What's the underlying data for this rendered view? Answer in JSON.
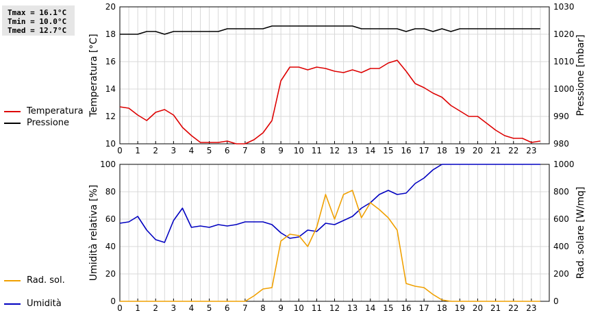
{
  "stats": {
    "tmax": "Tmax = 16.1°C",
    "tmin": "Tmin = 10.0°C",
    "tmed": "Tmed = 12.7°C"
  },
  "legend": {
    "top": [
      {
        "label": "Temperatura",
        "color": "#dd0000"
      },
      {
        "label": "Pressione",
        "color": "#000000"
      }
    ],
    "bottom": [
      {
        "label": "Umidità",
        "color": "#0000c0"
      },
      {
        "label": "Rad. sol.",
        "color": "#f0a000"
      }
    ]
  },
  "chart_data": [
    {
      "type": "line",
      "x_ticks": [
        "0",
        "1",
        "2",
        "3",
        "4",
        "5",
        "6",
        "7",
        "8",
        "9",
        "10",
        "11",
        "12",
        "13",
        "14",
        "15",
        "16",
        "17",
        "18",
        "19",
        "20",
        "21",
        "22",
        "23"
      ],
      "left_axis": {
        "label": "Temperatura [°C]",
        "range": [
          10,
          20
        ],
        "ticks": [
          "10",
          "12",
          "14",
          "16",
          "18",
          "20"
        ]
      },
      "right_axis": {
        "label": "Pressione [mbar]",
        "range": [
          980,
          1030
        ],
        "ticks": [
          "980",
          "990",
          "1000",
          "1010",
          "1020",
          "1030"
        ]
      },
      "grid": true,
      "series": [
        {
          "name": "Temperatura",
          "axis": "left",
          "color": "#dd0000",
          "x": [
            0,
            0.5,
            1,
            1.5,
            2,
            2.5,
            3,
            3.5,
            4,
            4.5,
            5,
            5.5,
            6,
            6.5,
            7,
            7.5,
            8,
            8.5,
            9,
            9.5,
            10,
            10.5,
            11,
            11.5,
            12,
            12.5,
            13,
            13.5,
            14,
            14.5,
            15,
            15.5,
            16,
            16.5,
            17,
            17.5,
            18,
            18.5,
            19,
            19.5,
            20,
            20.5,
            21,
            21.5,
            22,
            22.5,
            23,
            23.5
          ],
          "values": [
            12.7,
            12.6,
            12.1,
            11.7,
            12.3,
            12.5,
            12.1,
            11.2,
            10.6,
            10.1,
            10.1,
            10.1,
            10.2,
            10.0,
            10.0,
            10.3,
            10.8,
            11.7,
            14.6,
            15.6,
            15.6,
            15.4,
            15.6,
            15.5,
            15.3,
            15.2,
            15.4,
            15.2,
            15.5,
            15.5,
            15.9,
            16.1,
            15.3,
            14.4,
            14.1,
            13.7,
            13.4,
            12.8,
            12.4,
            12.0,
            12.0,
            11.5,
            11.0,
            10.6,
            10.4,
            10.4,
            10.1,
            10.2
          ]
        },
        {
          "name": "Pressione",
          "axis": "right",
          "color": "#000000",
          "x": [
            0,
            0.5,
            1,
            1.5,
            2,
            2.5,
            3,
            3.5,
            4,
            4.5,
            5,
            5.5,
            6,
            6.5,
            7,
            7.5,
            8,
            8.5,
            9,
            9.5,
            10,
            10.5,
            11,
            11.5,
            12,
            12.5,
            13,
            13.5,
            14,
            14.5,
            15,
            15.5,
            16,
            16.5,
            17,
            17.5,
            18,
            18.5,
            19,
            19.5,
            20,
            20.5,
            21,
            21.5,
            22,
            22.5,
            23,
            23.5
          ],
          "values": [
            1020,
            1020,
            1020,
            1021,
            1021,
            1020,
            1021,
            1021,
            1021,
            1021,
            1021,
            1021,
            1022,
            1022,
            1022,
            1022,
            1022,
            1023,
            1023,
            1023,
            1023,
            1023,
            1023,
            1023,
            1023,
            1023,
            1023,
            1022,
            1022,
            1022,
            1022,
            1022,
            1021,
            1022,
            1022,
            1021,
            1022,
            1021,
            1022,
            1022,
            1022,
            1022,
            1022,
            1022,
            1022,
            1022,
            1022,
            1022
          ]
        }
      ]
    },
    {
      "type": "line",
      "x_ticks": [
        "0",
        "1",
        "2",
        "3",
        "4",
        "5",
        "6",
        "7",
        "8",
        "9",
        "10",
        "11",
        "12",
        "13",
        "14",
        "15",
        "16",
        "17",
        "18",
        "19",
        "20",
        "21",
        "22",
        "23"
      ],
      "left_axis": {
        "label": "Umidità relativa [%]",
        "range": [
          0,
          100
        ],
        "ticks": [
          "0",
          "20",
          "40",
          "60",
          "80",
          "100"
        ]
      },
      "right_axis": {
        "label": "Rad. solare [W/mq]",
        "range": [
          0,
          1000
        ],
        "ticks": [
          "0",
          "200",
          "400",
          "600",
          "800",
          "1000"
        ]
      },
      "grid": true,
      "series": [
        {
          "name": "Umidità",
          "axis": "left",
          "color": "#0000c0",
          "x": [
            0,
            0.5,
            1,
            1.5,
            2,
            2.5,
            3,
            3.5,
            4,
            4.5,
            5,
            5.5,
            6,
            6.5,
            7,
            7.5,
            8,
            8.5,
            9,
            9.5,
            10,
            10.5,
            11,
            11.5,
            12,
            12.5,
            13,
            13.5,
            14,
            14.5,
            15,
            15.5,
            16,
            16.5,
            17,
            17.5,
            18,
            18.5,
            19,
            19.5,
            20,
            20.5,
            21,
            21.5,
            22,
            22.5,
            23,
            23.5
          ],
          "values": [
            57,
            58,
            62,
            52,
            45,
            43,
            59,
            68,
            54,
            55,
            54,
            56,
            55,
            56,
            58,
            58,
            58,
            56,
            50,
            46,
            47,
            52,
            51,
            57,
            56,
            59,
            62,
            68,
            72,
            78,
            81,
            78,
            79,
            86,
            90,
            96,
            100,
            100,
            100,
            100,
            100,
            100,
            100,
            100,
            100,
            100,
            100,
            100
          ]
        },
        {
          "name": "Rad. sol.",
          "axis": "right",
          "color": "#f0a000",
          "x": [
            0,
            0.5,
            1,
            1.5,
            2,
            2.5,
            3,
            3.5,
            4,
            4.5,
            5,
            5.5,
            6,
            6.5,
            7,
            7.5,
            8,
            8.5,
            9,
            9.5,
            10,
            10.5,
            11,
            11.5,
            12,
            12.5,
            13,
            13.5,
            14,
            14.5,
            15,
            15.5,
            16,
            16.5,
            17,
            17.5,
            18,
            18.5,
            19,
            19.5,
            20,
            20.5,
            21,
            21.5,
            22,
            22.5,
            23,
            23.5
          ],
          "values": [
            0,
            0,
            0,
            0,
            0,
            0,
            0,
            0,
            0,
            0,
            0,
            0,
            0,
            0,
            0,
            40,
            90,
            100,
            440,
            490,
            480,
            400,
            540,
            780,
            600,
            780,
            810,
            610,
            720,
            670,
            610,
            520,
            130,
            110,
            100,
            50,
            10,
            0,
            0,
            0,
            0,
            0,
            0,
            0,
            0,
            0,
            0,
            0
          ]
        }
      ]
    }
  ]
}
